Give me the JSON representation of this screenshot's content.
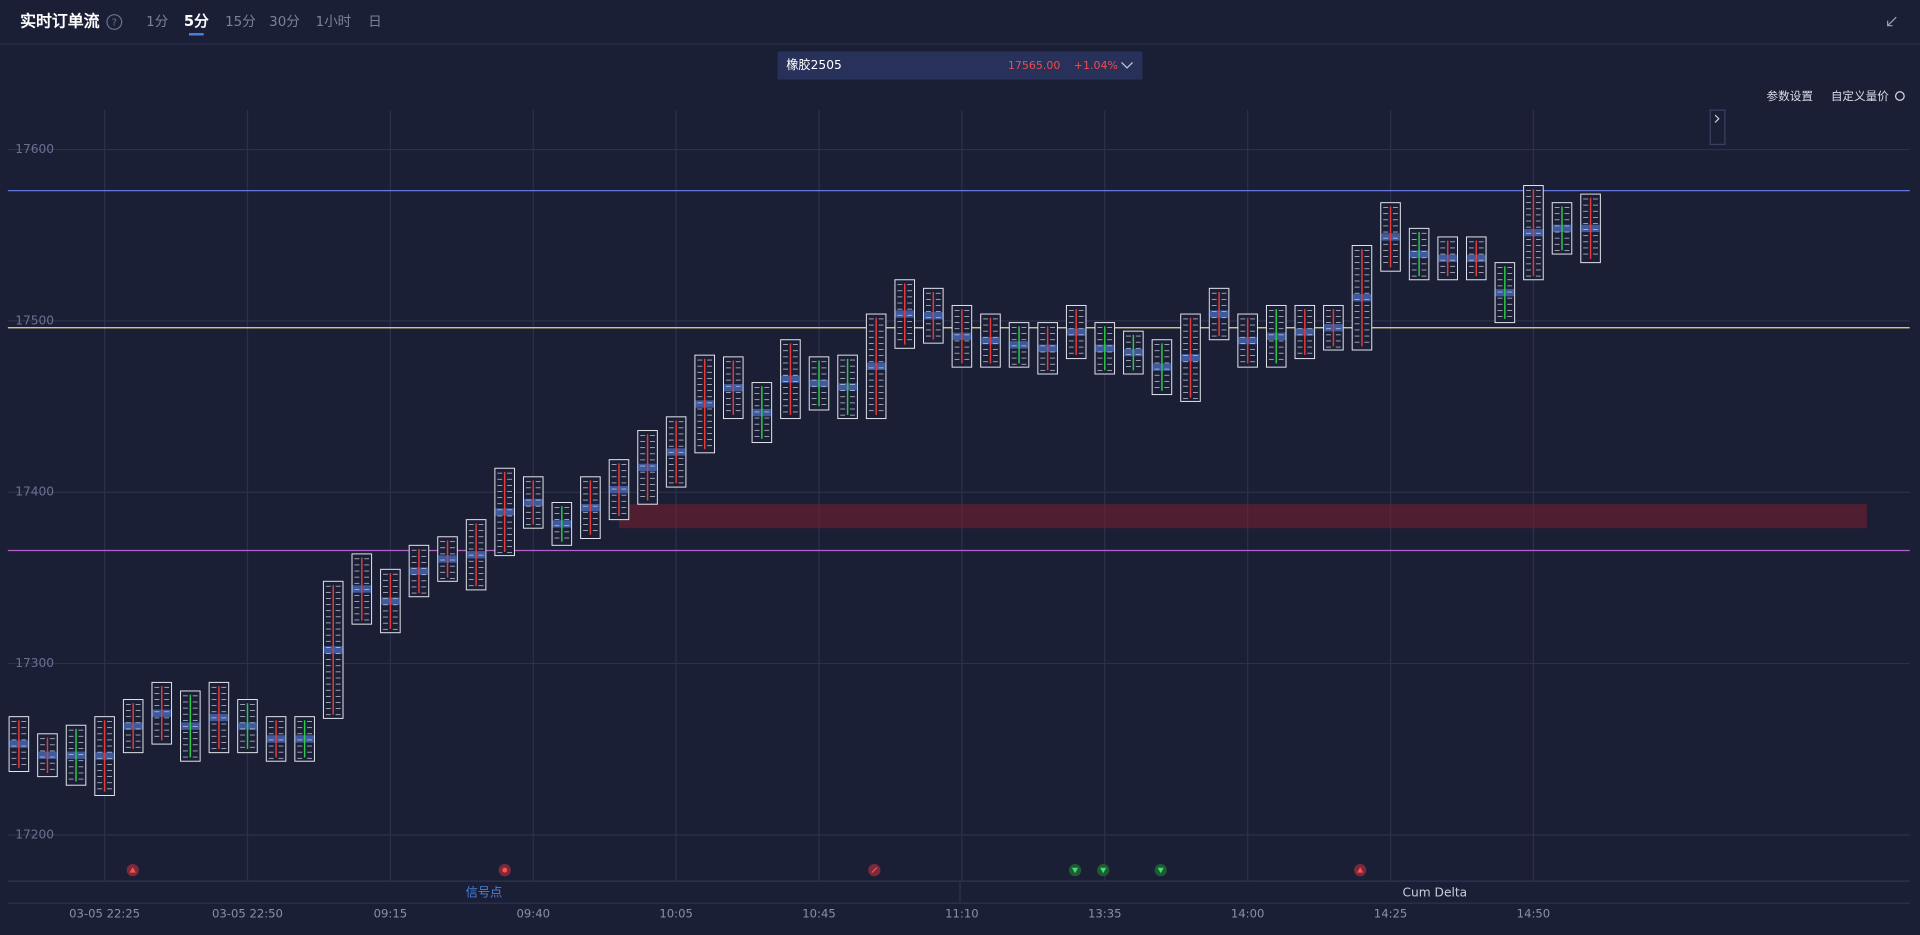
{
  "header": {
    "title": "实时订单流",
    "help": "?",
    "tabs": [
      "1分",
      "5分",
      "15分",
      "30分",
      "1小时",
      "日"
    ],
    "active_tab": 1
  },
  "symbol": {
    "name": "橡胶2505",
    "price": "17565.00",
    "change": "+1.04%"
  },
  "toolbar": [
    "参数设置",
    "自定义量价"
  ],
  "chart_data": {
    "type": "footprint",
    "categories": [
      null,
      null,
      null,
      "03-05 22:25",
      null,
      null,
      null,
      null,
      "03-05 22:50",
      null,
      null,
      null,
      null,
      "09:15",
      null,
      null,
      null,
      null,
      "09:40",
      null,
      null,
      null,
      null,
      "10:05",
      null,
      null,
      null,
      null,
      "10:45",
      null,
      null,
      null,
      null,
      "11:10",
      null,
      null,
      null,
      null,
      "13:35",
      null,
      null,
      null,
      null,
      "14:00",
      null,
      null,
      null,
      null,
      "14:25",
      null,
      null,
      null,
      null,
      "14:50",
      null,
      null
    ],
    "high": [
      17269,
      17259,
      17264,
      17269,
      17279,
      17289,
      17284,
      17289,
      17279,
      17269,
      17269,
      17348,
      17364,
      17355,
      17369,
      17374,
      17384,
      17414,
      17409,
      17394,
      17409,
      17419,
      17436,
      17444,
      17480,
      17479,
      17464,
      17489,
      17479,
      17480,
      17504,
      17524,
      17519,
      17509,
      17504,
      17499,
      17499,
      17509,
      17499,
      17494,
      17489,
      17504,
      17519,
      17504,
      17509,
      17509,
      17509,
      17544,
      17569,
      17554,
      17549,
      17549,
      17534,
      17579,
      17569,
      17574
    ],
    "low": [
      17237,
      17234,
      17229,
      17223,
      17248,
      17253,
      17243,
      17248,
      17248,
      17243,
      17243,
      17268,
      17323,
      17318,
      17339,
      17348,
      17343,
      17363,
      17379,
      17369,
      17373,
      17384,
      17393,
      17403,
      17423,
      17443,
      17429,
      17443,
      17448,
      17443,
      17443,
      17484,
      17487,
      17473,
      17473,
      17473,
      17469,
      17478,
      17469,
      17469,
      17457,
      17453,
      17489,
      17473,
      17473,
      17478,
      17483,
      17483,
      17529,
      17524,
      17524,
      17524,
      17499,
      17524,
      17539,
      17534
    ],
    "colors": [
      "#e23b3b",
      "#e23b3b",
      "#2ec94a",
      "#e23b3b",
      "#e23b3b",
      "#e23b3b",
      "#2ec94a",
      "#e23b3b",
      "#2ec94a",
      "#e23b3b",
      "#2ec94a",
      "#e23b3b",
      "#e23b3b",
      "#e23b3b",
      "#e23b3b",
      "#e23b3b",
      "#e23b3b",
      "#e23b3b",
      "#e23b3b",
      "#2ec94a",
      "#e23b3b",
      "#e23b3b",
      "#e23b3b",
      "#e23b3b",
      "#e23b3b",
      "#e23b3b",
      "#2ec94a",
      "#e23b3b",
      "#2ec94a",
      "#2ec94a",
      "#e23b3b",
      "#e23b3b",
      "#e23b3b",
      "#e23b3b",
      "#e23b3b",
      "#2ec94a",
      "#e23b3b",
      "#e23b3b",
      "#2ec94a",
      "#2ec94a",
      "#2ec94a",
      "#e23b3b",
      "#e23b3b",
      "#e23b3b",
      "#2ec94a",
      "#e23b3b",
      "#e23b3b",
      "#e23b3b",
      "#e23b3b",
      "#2ec94a",
      "#e23b3b",
      "#e23b3b",
      "#2ec94a",
      "#e23b3b",
      "#2ec94a",
      "#e23b3b"
    ],
    "ylim": [
      17173,
      17623
    ],
    "yticks": [
      17200,
      17300,
      17400,
      17500,
      17600
    ],
    "grid": true,
    "lines": [
      {
        "value": 17576,
        "color": "#6675d8"
      },
      {
        "value": 17496,
        "color": "#e8e08a"
      },
      {
        "value": 17366,
        "color": "#b060c8"
      }
    ],
    "zone": [
      17379,
      17393
    ],
    "panels": [
      "信号点",
      "Cum Delta"
    ]
  }
}
